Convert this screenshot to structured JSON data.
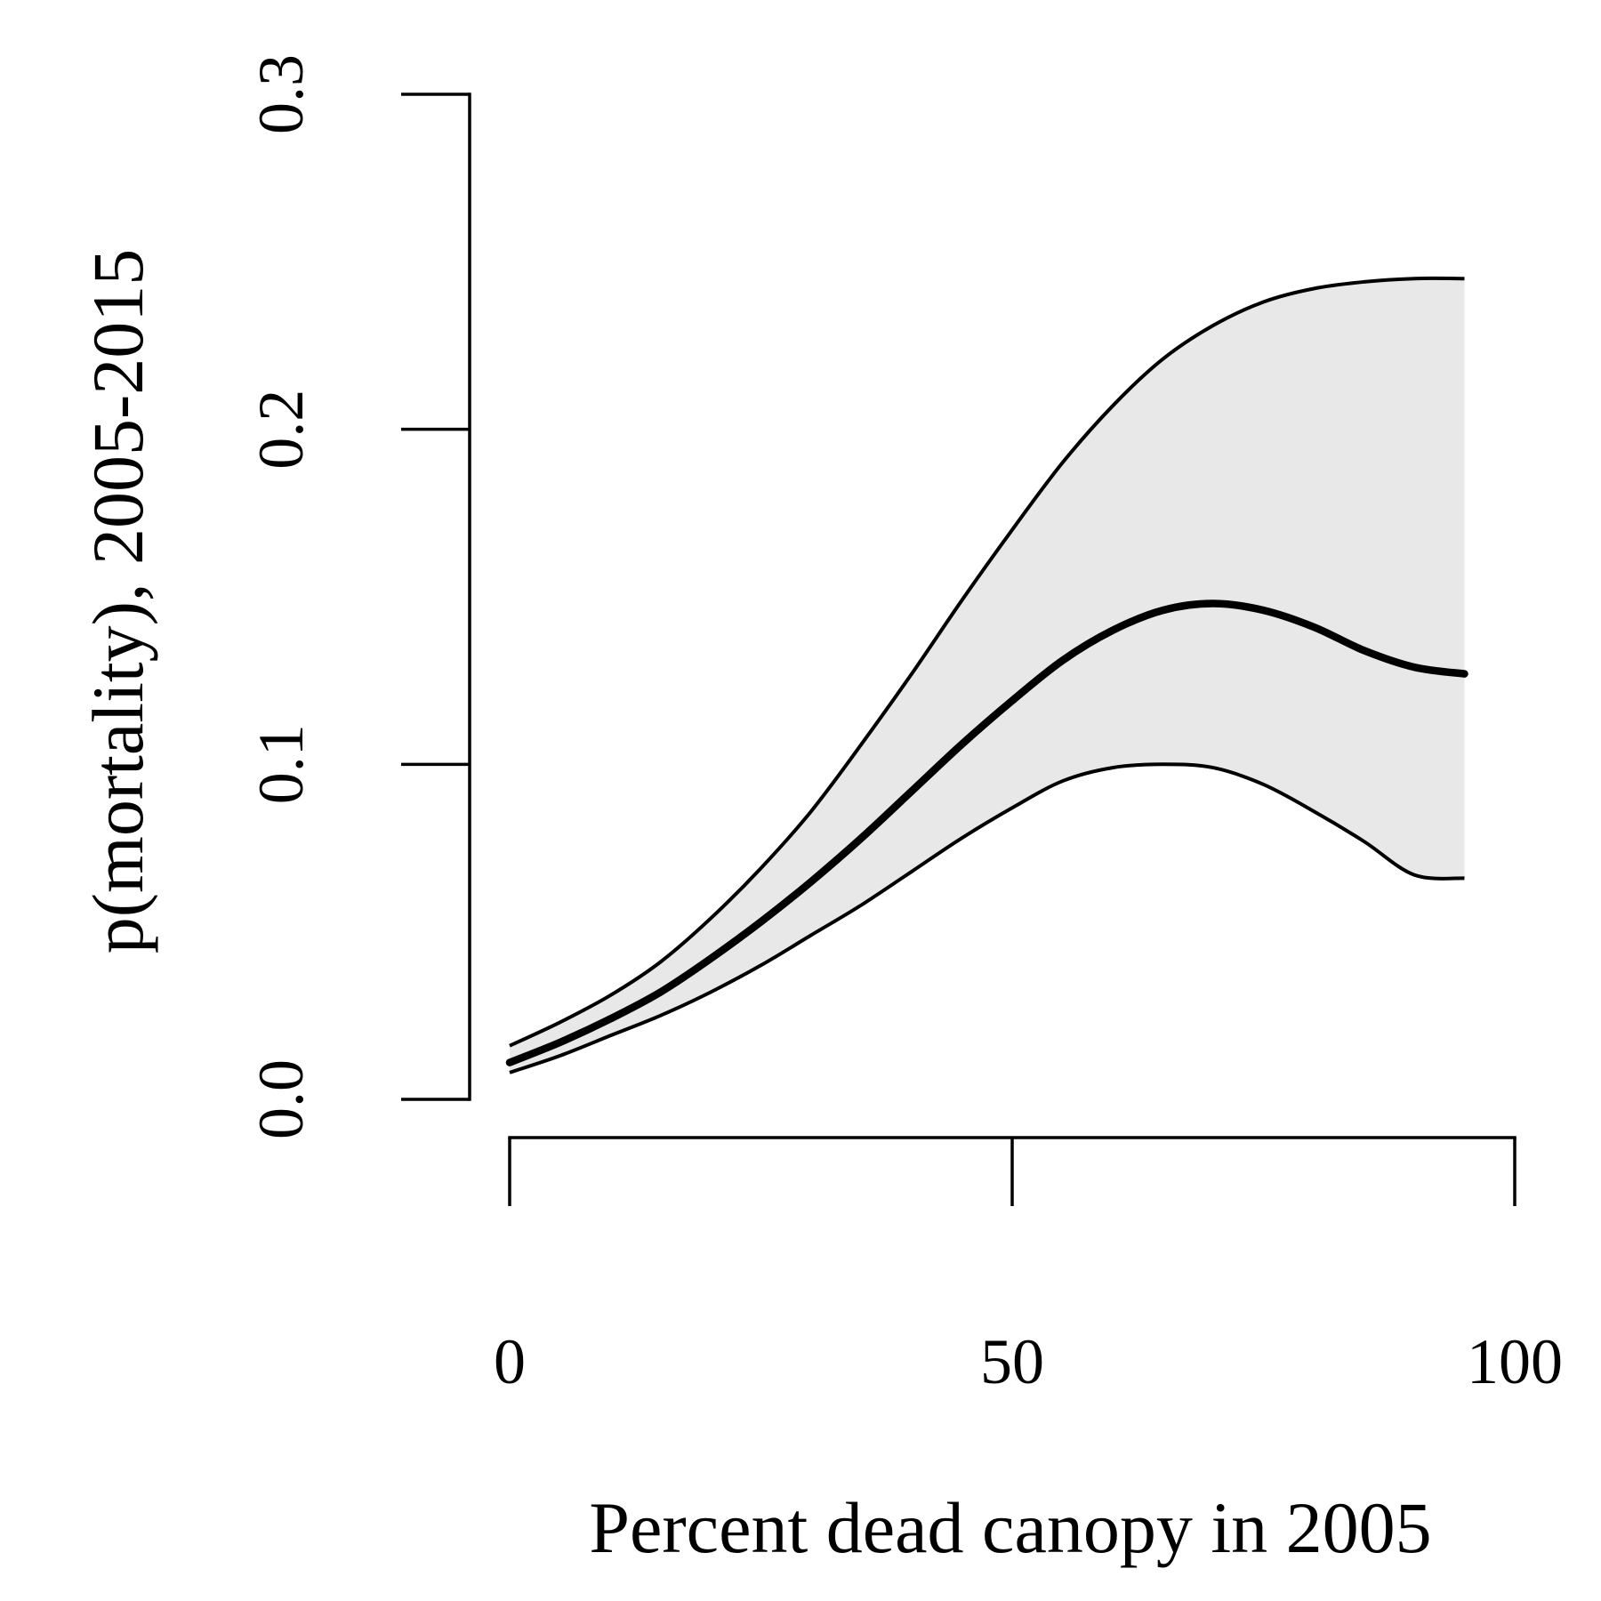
{
  "chart_data": {
    "type": "line",
    "xlabel": "Percent dead canopy in 2005",
    "ylabel": "p(mortality), 2005-2015",
    "xlim": [
      0,
      100
    ],
    "ylim": [
      0,
      0.3
    ],
    "xticks": [
      0,
      50,
      100
    ],
    "xtick_labels": [
      "0",
      "50",
      "100"
    ],
    "yticks": [
      0.0,
      0.1,
      0.2,
      0.3
    ],
    "ytick_labels": [
      "0.0",
      "0.1",
      "0.2",
      "0.3"
    ],
    "grid": false,
    "legend": "none",
    "band_color": "#e8e8e8",
    "line_color": "#000000",
    "x": [
      0,
      5,
      10,
      15,
      20,
      25,
      30,
      35,
      40,
      45,
      50,
      55,
      60,
      65,
      70,
      75,
      80,
      85,
      90,
      95
    ],
    "series": [
      {
        "role": "upper",
        "values": [
          0.016,
          0.023,
          0.031,
          0.041,
          0.054,
          0.069,
          0.086,
          0.106,
          0.127,
          0.149,
          0.17,
          0.19,
          0.207,
          0.221,
          0.231,
          0.238,
          0.242,
          0.244,
          0.245,
          0.245
        ]
      },
      {
        "role": "estimate",
        "values": [
          0.011,
          0.017,
          0.024,
          0.032,
          0.042,
          0.053,
          0.065,
          0.078,
          0.092,
          0.106,
          0.119,
          0.131,
          0.14,
          0.146,
          0.148,
          0.146,
          0.141,
          0.134,
          0.129,
          0.127
        ]
      },
      {
        "role": "lower",
        "values": [
          0.008,
          0.013,
          0.019,
          0.025,
          0.032,
          0.04,
          0.049,
          0.058,
          0.068,
          0.078,
          0.087,
          0.095,
          0.099,
          0.1,
          0.099,
          0.094,
          0.086,
          0.077,
          0.067,
          0.066
        ]
      }
    ]
  }
}
